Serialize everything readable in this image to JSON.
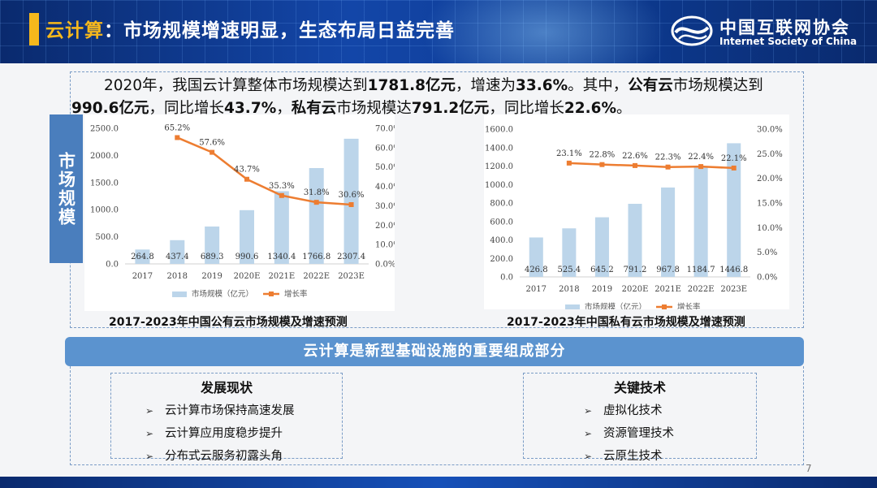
{
  "header": {
    "title_prefix": "云计算",
    "title_rest": "：市场规模增速明显，生态布局日益完善",
    "logo_cn": "中国互联网协会",
    "logo_en": "Internet Society of China"
  },
  "intro": {
    "p1": "2020年，我国云计算整体市场规模达到",
    "b1": "1781.8亿元",
    "p2": "，增速为",
    "b2": "33.6%",
    "p3": "。其中，",
    "b3": "公有云",
    "p4": "市场规模达到",
    "b4": "990.6亿元",
    "p5": "，同比增长",
    "b5": "43.7%",
    "p6": "，",
    "b6": "私有云",
    "p7": "市场规模达",
    "b7": "791.2亿元",
    "p8": "，同比增长",
    "b8": "22.6%",
    "p9": "。"
  },
  "side_tag": "市场规模",
  "chart_data": [
    {
      "type": "bar",
      "title": "2017-2023年中国公有云市场规模及增速预测",
      "categories": [
        "2017",
        "2018",
        "2019",
        "2020E",
        "2021E",
        "2022E",
        "2023E"
      ],
      "series": [
        {
          "name": "市场规模（亿元）",
          "type": "bar",
          "axis": "left",
          "values": [
            264.8,
            437.4,
            689.3,
            990.6,
            1340.4,
            1766.8,
            2307.4
          ],
          "labels": [
            "264.8",
            "437.4",
            "689.3",
            "990.6",
            "1340.4",
            "1766.8",
            "2307.4"
          ]
        },
        {
          "name": "增长率",
          "type": "line",
          "axis": "right",
          "values": [
            null,
            65.2,
            57.6,
            43.7,
            35.3,
            31.8,
            30.6
          ],
          "labels": [
            "",
            "65.2%",
            "57.6%",
            "43.7%",
            "35.3%",
            "31.8%",
            "30.6%"
          ]
        }
      ],
      "left_ylim": [
        0,
        2500
      ],
      "left_ticks": [
        "0.0",
        "500.0",
        "1000.0",
        "1500.0",
        "2000.0",
        "2500.0"
      ],
      "right_ylim": [
        0,
        70
      ],
      "right_ticks": [
        "0.0%",
        "10.0%",
        "20.0%",
        "30.0%",
        "40.0%",
        "50.0%",
        "60.0%",
        "70.0%"
      ],
      "legend": [
        "市场规模（亿元）",
        "增长率"
      ]
    },
    {
      "type": "bar",
      "title": "2017-2023年中国私有云市场规模及增速预测",
      "categories": [
        "2017",
        "2018",
        "2019",
        "2020E",
        "2021E",
        "2022E",
        "2023E"
      ],
      "series": [
        {
          "name": "市场规模（亿元）",
          "type": "bar",
          "axis": "left",
          "values": [
            426.8,
            525.4,
            645.2,
            791.2,
            967.8,
            1184.7,
            1446.8
          ],
          "labels": [
            "426.8",
            "525.4",
            "645.2",
            "791.2",
            "967.8",
            "1184.7",
            "1446.8"
          ]
        },
        {
          "name": "增长率",
          "type": "line",
          "axis": "right",
          "values": [
            null,
            23.1,
            22.8,
            22.6,
            22.3,
            22.4,
            22.1
          ],
          "labels": [
            "",
            "23.1%",
            "22.8%",
            "22.6%",
            "22.3%",
            "22.4%",
            "22.1%"
          ]
        }
      ],
      "left_ylim": [
        0,
        1600
      ],
      "left_ticks": [
        "0.0",
        "200.0",
        "400.0",
        "600.0",
        "800.0",
        "1000.0",
        "1200.0",
        "1400.0",
        "1600.0"
      ],
      "right_ylim": [
        0,
        30
      ],
      "right_ticks": [
        "0.0%",
        "5.0%",
        "10.0%",
        "15.0%",
        "20.0%",
        "25.0%",
        "30.0%"
      ],
      "legend": [
        "市场规模（亿元）",
        "增长率"
      ]
    }
  ],
  "band_text": "云计算是新型基础设施的重要组成部分",
  "panels": {
    "left": {
      "title": "发展现状",
      "items": [
        "云计算市场保持高速发展",
        "云计算应用度稳步提升",
        "分布式云服务初露头角"
      ]
    },
    "right": {
      "title": "关键技术",
      "items": [
        "虚拟化技术",
        "资源管理技术",
        "云原生技术"
      ]
    }
  },
  "page_number": "7",
  "colors": {
    "bar": "#bcd5ea",
    "line": "#ed7d31",
    "accent": "#f6b81c",
    "band": "#5b93cf"
  }
}
